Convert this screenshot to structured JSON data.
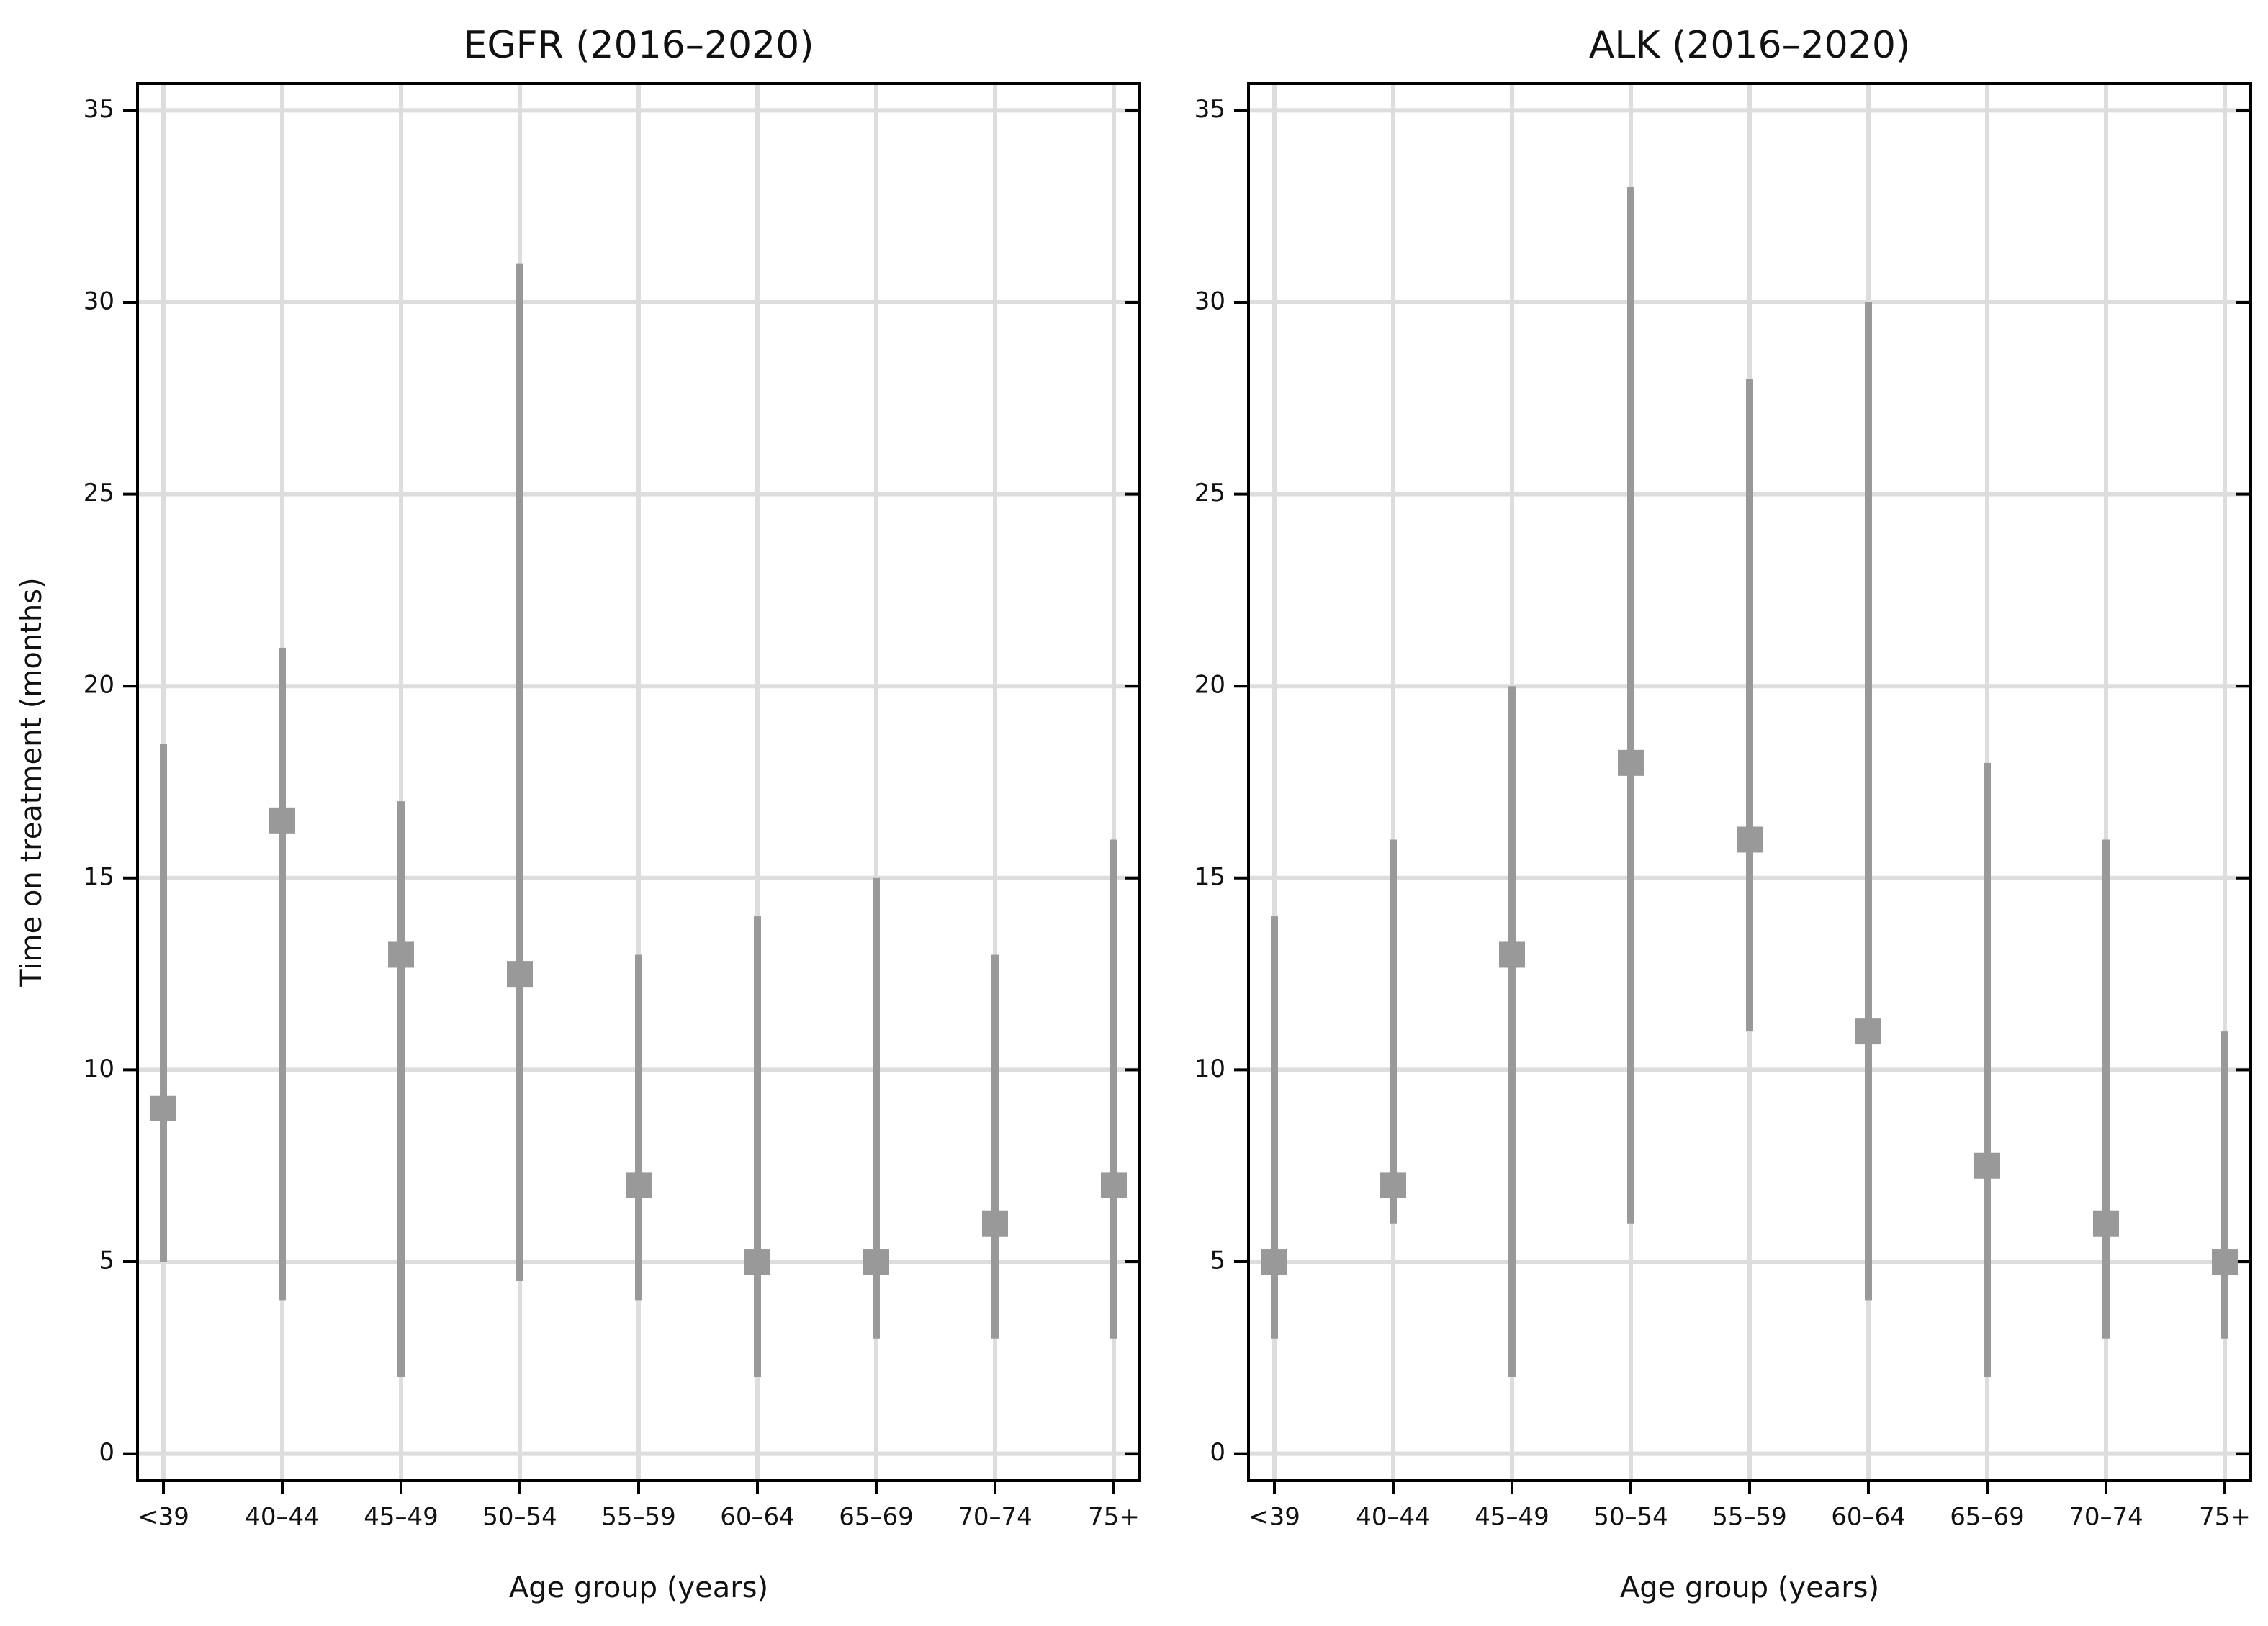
{
  "chart_data": [
    {
      "type": "range",
      "title": "EGFR (2016–2020)",
      "x_label": "Age group (years)",
      "y_label": "Time on treatment (months)",
      "categories": [
        "<39",
        "40–44",
        "45–49",
        "50–54",
        "55–59",
        "60–64",
        "65–69",
        "70–74",
        "75+"
      ],
      "values": [
        9,
        16.5,
        13,
        12.5,
        7,
        5,
        5,
        6,
        7
      ],
      "lower": [
        5,
        4,
        2,
        4.5,
        4,
        2,
        3,
        3,
        3
      ],
      "upper": [
        18.5,
        21,
        17,
        31,
        13,
        14,
        15,
        13,
        16
      ],
      "color": "#999999",
      "ylim": [
        -0.7,
        35.7
      ],
      "yticks": [
        0,
        5,
        10,
        15,
        20,
        25,
        30,
        35
      ],
      "grid": true
    },
    {
      "type": "range",
      "title": "ALK (2016–2020)",
      "x_label": "Age group (years)",
      "categories": [
        "<39",
        "40–44",
        "45–49",
        "50–54",
        "55–59",
        "60–64",
        "65–69",
        "70–74",
        "75+"
      ],
      "values": [
        5,
        7,
        13,
        18,
        16,
        11,
        7.5,
        6,
        5
      ],
      "lower": [
        3,
        6,
        2,
        6,
        11,
        4,
        2,
        3,
        3
      ],
      "upper": [
        14,
        16,
        20,
        33,
        28,
        30,
        18,
        16,
        11
      ],
      "color": "#999999",
      "ylim": [
        -0.7,
        35.7
      ],
      "yticks": [
        0,
        5,
        10,
        15,
        20,
        25,
        30,
        35
      ],
      "grid": true
    }
  ]
}
